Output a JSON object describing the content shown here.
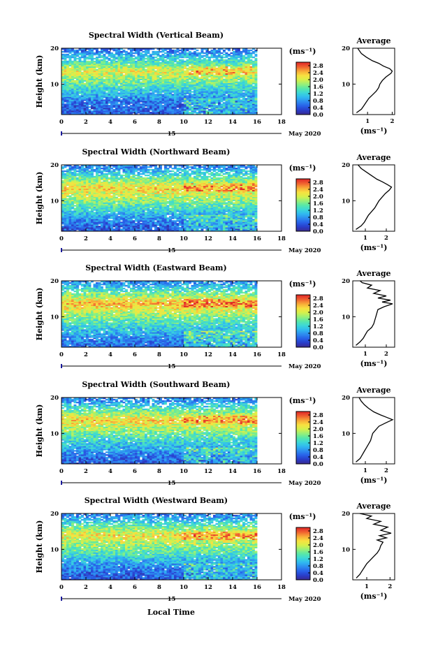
{
  "figure": {
    "xlabel": "Local Time",
    "day_label": "15",
    "date_label": "May 2020",
    "colorbar_unit": "(ms⁻¹)",
    "avg_title": "Average",
    "avg_xlabel": "(ms⁻¹)",
    "ylabel": "Height (km)"
  },
  "chart_data": [
    {
      "type": "heatmap",
      "title": "Spectral Width (Vertical Beam)",
      "xlabel": "",
      "ylabel": "Height (km)",
      "x_ticks": [
        0,
        2,
        4,
        6,
        8,
        10,
        12,
        14,
        16,
        18
      ],
      "xlim": [
        0,
        18
      ],
      "data_xlim": [
        0,
        16
      ],
      "ylim": [
        1.5,
        20
      ],
      "y_ticks": [
        10,
        20
      ],
      "colorbar": {
        "label": "(ms⁻¹)",
        "ticks": [
          0.0,
          0.4,
          0.8,
          1.2,
          1.6,
          2.0,
          2.4,
          2.8
        ],
        "range": [
          0,
          3.0
        ],
        "colors": [
          "#3c2a8c",
          "#2a3cc8",
          "#2860e8",
          "#2e8cf0",
          "#30b8f0",
          "#3cd8d8",
          "#58e8a8",
          "#98f078",
          "#d8f04a",
          "#f8e040",
          "#f8a838",
          "#f06030",
          "#e02828"
        ]
      },
      "profile_features": [
        {
          "height_km": 2.5,
          "level": 0.5
        },
        {
          "height_km": 5.0,
          "level": 0.6
        },
        {
          "height_km": 9.0,
          "level": 1.3
        },
        {
          "height_km": 13.5,
          "level": 2.1
        },
        {
          "height_km": 17.0,
          "level": 1.2
        },
        {
          "height_km": 19.5,
          "level": 0.6
        }
      ],
      "average": {
        "title": "Average",
        "xlabel": "(ms⁻¹)",
        "x_ticks": [
          1,
          2
        ],
        "xlim": [
          0.4,
          2.1
        ],
        "y_ticks": [
          10,
          20
        ],
        "ylim": [
          1.5,
          20
        ],
        "profile": [
          [
            0.55,
            2
          ],
          [
            0.75,
            3
          ],
          [
            0.85,
            4
          ],
          [
            0.95,
            5
          ],
          [
            1.05,
            6
          ],
          [
            1.2,
            7
          ],
          [
            1.35,
            8
          ],
          [
            1.45,
            9
          ],
          [
            1.5,
            10
          ],
          [
            1.6,
            11
          ],
          [
            1.75,
            12
          ],
          [
            1.95,
            13
          ],
          [
            2.0,
            13.6
          ],
          [
            1.9,
            14.3
          ],
          [
            1.65,
            15
          ],
          [
            1.45,
            15.8
          ],
          [
            1.2,
            16.5
          ],
          [
            0.95,
            17.5
          ],
          [
            0.75,
            18.5
          ],
          [
            0.65,
            19.5
          ],
          [
            0.6,
            20
          ]
        ]
      }
    },
    {
      "type": "heatmap",
      "title": "Spectral Width (Northward Beam)",
      "xlabel": "",
      "ylabel": "Height (km)",
      "x_ticks": [
        0,
        2,
        4,
        6,
        8,
        10,
        12,
        14,
        16,
        18
      ],
      "xlim": [
        0,
        18
      ],
      "data_xlim": [
        0,
        16
      ],
      "ylim": [
        1.5,
        20
      ],
      "y_ticks": [
        10,
        20
      ],
      "colorbar": {
        "label": "(ms⁻¹)",
        "ticks": [
          0.0,
          0.4,
          0.8,
          1.2,
          1.6,
          2.0,
          2.4,
          2.8
        ],
        "range": [
          0,
          3.0
        ],
        "colors": [
          "#3c2a8c",
          "#2a3cc8",
          "#2860e8",
          "#2e8cf0",
          "#30b8f0",
          "#3cd8d8",
          "#58e8a8",
          "#98f078",
          "#d8f04a",
          "#f8e040",
          "#f8a838",
          "#f06030",
          "#e02828"
        ]
      },
      "profile_features": [
        {
          "height_km": 2.5,
          "level": 0.5
        },
        {
          "height_km": 5.0,
          "level": 0.8
        },
        {
          "height_km": 9.0,
          "level": 1.5
        },
        {
          "height_km": 13.5,
          "level": 2.3
        },
        {
          "height_km": 17.0,
          "level": 1.4
        },
        {
          "height_km": 19.5,
          "level": 0.7
        }
      ],
      "average": {
        "title": "Average",
        "xlabel": "(ms⁻¹)",
        "x_ticks": [
          1,
          2
        ],
        "xlim": [
          0.4,
          2.4
        ],
        "y_ticks": [
          10,
          20
        ],
        "ylim": [
          1.5,
          20
        ],
        "profile": [
          [
            0.55,
            2
          ],
          [
            0.8,
            3
          ],
          [
            0.95,
            4
          ],
          [
            1.05,
            5
          ],
          [
            1.15,
            6
          ],
          [
            1.3,
            7
          ],
          [
            1.45,
            8
          ],
          [
            1.55,
            9
          ],
          [
            1.65,
            10
          ],
          [
            1.8,
            11
          ],
          [
            1.95,
            12
          ],
          [
            2.15,
            13
          ],
          [
            2.25,
            13.8
          ],
          [
            2.05,
            14.5
          ],
          [
            1.8,
            15.3
          ],
          [
            1.55,
            16
          ],
          [
            1.3,
            17
          ],
          [
            1.05,
            18
          ],
          [
            0.8,
            19
          ],
          [
            0.65,
            20
          ]
        ]
      }
    },
    {
      "type": "heatmap",
      "title": "Spectral Width (Eastward Beam)",
      "xlabel": "",
      "ylabel": "Height (km)",
      "x_ticks": [
        0,
        2,
        4,
        6,
        8,
        10,
        12,
        14,
        16,
        18
      ],
      "xlim": [
        0,
        18
      ],
      "data_xlim": [
        0,
        16
      ],
      "ylim": [
        1.5,
        20
      ],
      "y_ticks": [
        10,
        20
      ],
      "colorbar": {
        "label": "(ms⁻¹)",
        "ticks": [
          0.0,
          0.4,
          0.8,
          1.2,
          1.6,
          2.0,
          2.4,
          2.8
        ],
        "range": [
          0,
          3.0
        ],
        "colors": [
          "#3c2a8c",
          "#2a3cc8",
          "#2860e8",
          "#2e8cf0",
          "#30b8f0",
          "#3cd8d8",
          "#58e8a8",
          "#98f078",
          "#d8f04a",
          "#f8e040",
          "#f8a838",
          "#f06030",
          "#e02828"
        ]
      },
      "profile_features": [
        {
          "height_km": 2.5,
          "level": 0.6
        },
        {
          "height_km": 5.0,
          "level": 0.9
        },
        {
          "height_km": 9.0,
          "level": 1.5
        },
        {
          "height_km": 13.8,
          "level": 2.4
        },
        {
          "height_km": 17.0,
          "level": 1.5
        },
        {
          "height_km": 19.5,
          "level": 0.8
        }
      ],
      "average": {
        "title": "Average",
        "xlabel": "(ms⁻¹)",
        "x_ticks": [
          1,
          2
        ],
        "xlim": [
          0.4,
          2.4
        ],
        "y_ticks": [
          10,
          20
        ],
        "ylim": [
          1.5,
          20
        ],
        "profile": [
          [
            0.55,
            2
          ],
          [
            0.75,
            3
          ],
          [
            0.9,
            4
          ],
          [
            1.0,
            5
          ],
          [
            1.1,
            6
          ],
          [
            1.3,
            7
          ],
          [
            1.4,
            8
          ],
          [
            1.45,
            9
          ],
          [
            1.5,
            10
          ],
          [
            1.55,
            11
          ],
          [
            1.6,
            12
          ],
          [
            1.9,
            12.8
          ],
          [
            2.3,
            13.6
          ],
          [
            1.8,
            14.1
          ],
          [
            2.2,
            14.6
          ],
          [
            1.6,
            15.2
          ],
          [
            2.0,
            15.8
          ],
          [
            1.4,
            16.5
          ],
          [
            1.7,
            17.3
          ],
          [
            1.1,
            18
          ],
          [
            1.3,
            18.8
          ],
          [
            0.85,
            19.5
          ],
          [
            0.75,
            20
          ]
        ]
      }
    },
    {
      "type": "heatmap",
      "title": "Spectral Width (Southward Beam)",
      "xlabel": "",
      "ylabel": "Height (km)",
      "x_ticks": [
        0,
        2,
        4,
        6,
        8,
        10,
        12,
        14,
        16,
        18
      ],
      "xlim": [
        0,
        18
      ],
      "data_xlim": [
        0,
        16
      ],
      "ylim": [
        1.5,
        20
      ],
      "y_ticks": [
        10,
        20
      ],
      "colorbar": {
        "label": "(ms⁻¹)",
        "ticks": [
          0.0,
          0.4,
          0.8,
          1.2,
          1.6,
          2.0,
          2.4,
          2.8
        ],
        "range": [
          0,
          3.0
        ],
        "colors": [
          "#3c2a8c",
          "#2a3cc8",
          "#2860e8",
          "#2e8cf0",
          "#30b8f0",
          "#3cd8d8",
          "#58e8a8",
          "#98f078",
          "#d8f04a",
          "#f8e040",
          "#f8a838",
          "#f06030",
          "#e02828"
        ]
      },
      "profile_features": [
        {
          "height_km": 2.5,
          "level": 0.5
        },
        {
          "height_km": 5.0,
          "level": 0.8
        },
        {
          "height_km": 9.0,
          "level": 1.4
        },
        {
          "height_km": 13.8,
          "level": 2.3
        },
        {
          "height_km": 17.0,
          "level": 1.4
        },
        {
          "height_km": 19.5,
          "level": 0.7
        }
      ],
      "average": {
        "title": "Average",
        "xlabel": "(ms⁻¹)",
        "x_ticks": [
          1,
          2
        ],
        "xlim": [
          0.4,
          2.4
        ],
        "y_ticks": [
          10,
          20
        ],
        "ylim": [
          1.5,
          20
        ],
        "profile": [
          [
            0.55,
            2
          ],
          [
            0.75,
            3
          ],
          [
            0.85,
            4
          ],
          [
            0.95,
            5
          ],
          [
            1.05,
            6
          ],
          [
            1.15,
            7
          ],
          [
            1.25,
            8
          ],
          [
            1.3,
            9
          ],
          [
            1.35,
            10
          ],
          [
            1.5,
            11
          ],
          [
            1.65,
            12
          ],
          [
            2.0,
            13
          ],
          [
            2.3,
            13.8
          ],
          [
            2.0,
            14.5
          ],
          [
            1.7,
            15.2
          ],
          [
            1.4,
            16
          ],
          [
            1.15,
            17
          ],
          [
            0.95,
            18
          ],
          [
            0.8,
            19
          ],
          [
            0.7,
            20
          ]
        ]
      }
    },
    {
      "type": "heatmap",
      "title": "Spectral Width (Westward Beam)",
      "xlabel": "Local Time",
      "ylabel": "Height (km)",
      "x_ticks": [
        0,
        2,
        4,
        6,
        8,
        10,
        12,
        14,
        16,
        18
      ],
      "xlim": [
        0,
        18
      ],
      "data_xlim": [
        0,
        16
      ],
      "ylim": [
        1.5,
        20
      ],
      "y_ticks": [
        10,
        20
      ],
      "colorbar": {
        "label": "(ms⁻¹)",
        "ticks": [
          0.0,
          0.4,
          0.8,
          1.2,
          1.6,
          2.0,
          2.4,
          2.8
        ],
        "range": [
          0,
          3.0
        ],
        "colors": [
          "#3c2a8c",
          "#2a3cc8",
          "#2860e8",
          "#2e8cf0",
          "#30b8f0",
          "#3cd8d8",
          "#58e8a8",
          "#98f078",
          "#d8f04a",
          "#f8e040",
          "#f8a838",
          "#f06030",
          "#e02828"
        ]
      },
      "profile_features": [
        {
          "height_km": 2.5,
          "level": 0.5
        },
        {
          "height_km": 5.0,
          "level": 0.7
        },
        {
          "height_km": 9.0,
          "level": 1.4
        },
        {
          "height_km": 14.0,
          "level": 2.2
        },
        {
          "height_km": 17.0,
          "level": 1.4
        },
        {
          "height_km": 19.5,
          "level": 0.7
        }
      ],
      "average": {
        "title": "Average",
        "xlabel": "(ms⁻¹)",
        "x_ticks": [
          1,
          2
        ],
        "xlim": [
          0.4,
          2.2
        ],
        "y_ticks": [
          10,
          20
        ],
        "ylim": [
          1.5,
          20
        ],
        "profile": [
          [
            0.55,
            2
          ],
          [
            0.7,
            3
          ],
          [
            0.8,
            4
          ],
          [
            0.9,
            5
          ],
          [
            1.0,
            6
          ],
          [
            1.15,
            7
          ],
          [
            1.3,
            8
          ],
          [
            1.45,
            9
          ],
          [
            1.55,
            10
          ],
          [
            1.6,
            11
          ],
          [
            1.7,
            12
          ],
          [
            1.45,
            12.6
          ],
          [
            1.85,
            13.2
          ],
          [
            1.55,
            13.8
          ],
          [
            2.05,
            14.5
          ],
          [
            1.6,
            15.3
          ],
          [
            1.9,
            16.2
          ],
          [
            1.3,
            17
          ],
          [
            1.6,
            17.8
          ],
          [
            1.0,
            18.6
          ],
          [
            1.2,
            19.3
          ],
          [
            0.7,
            20
          ]
        ]
      }
    }
  ]
}
